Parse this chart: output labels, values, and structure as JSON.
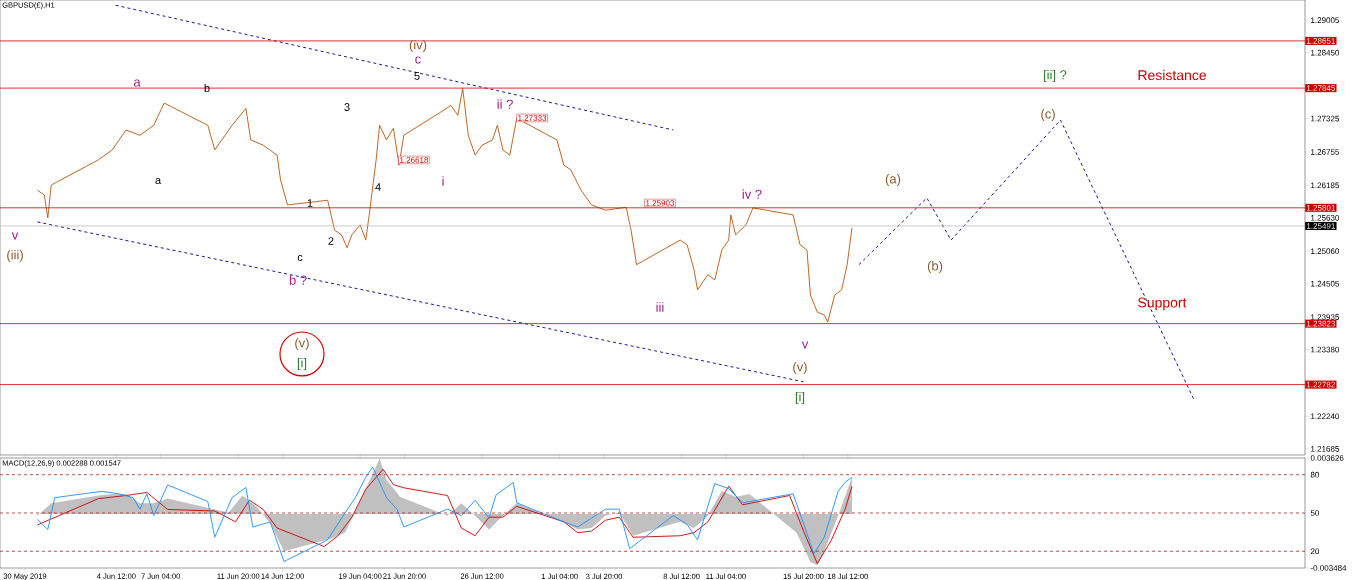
{
  "chart_data": [
    {
      "type": "line",
      "title": "GBPUSD(£),H1",
      "xlim": [
        "2019-05-28T12:00",
        "2019-08-15T00:00"
      ],
      "ylim": [
        1.2158,
        1.2935
      ],
      "tick_labels": "y",
      "yticks": [
        1.29005,
        {
          "value": 1.2845,
          "label": "1.28450"
        },
        1.27325,
        1.26755,
        1.26185,
        {
          "value": 1.2563,
          "label": "1.25630"
        },
        {
          "value": 1.2506,
          "label": "1.25060"
        },
        1.24505,
        1.23935,
        {
          "value": 1.2338,
          "label": "1.23380"
        },
        {
          "value": 1.2224,
          "label": "1.22240"
        },
        1.21685
      ],
      "series": [
        {
          "color": "#b8560f",
          "line_style": "solid",
          "x": [
            "2019-05-30T18:00",
            "2019-05-31T04:00",
            "2019-05-31T09:00",
            "2019-05-31T14:00",
            "2019-06-03T10:00",
            "2019-06-04T06:00",
            "2019-06-05T02:00",
            "2019-06-05T22:00",
            "2019-06-06T18:00",
            "2019-06-07T09:00",
            "2019-06-10T00:00",
            "2019-06-10T10:00",
            "2019-06-11T01:00",
            "2019-06-11T11:00",
            "2019-06-12T07:00",
            "2019-06-12T14:00",
            "2019-06-13T08:00",
            "2019-06-14T04:00",
            "2019-06-14T09:00",
            "2019-06-14T19:00",
            "2019-06-17T05:00",
            "2019-06-17T15:00",
            "2019-06-18T01:00",
            "2019-06-18T09:00",
            "2019-06-18T16:00",
            "2019-06-19T04:00",
            "2019-06-19T12:00",
            "2019-06-19T17:00",
            "2019-06-20T03:00",
            "2019-06-20T08:00",
            "2019-06-20T18:00",
            "2019-06-21T04:00",
            "2019-06-21T12:00",
            "2019-06-21T19:00",
            "2019-06-24T05:00",
            "2019-06-24T15:00",
            "2019-06-25T01:00",
            "2019-06-25T08:00",
            "2019-06-25T16:00",
            "2019-06-26T02:00",
            "2019-06-26T12:00",
            "2019-06-27T03:00",
            "2019-06-27T10:00",
            "2019-06-27T18:00",
            "2019-06-28T04:00",
            "2019-06-28T14:00",
            "2019-07-01T00:00",
            "2019-07-01T10:00",
            "2019-07-01T20:00",
            "2019-07-02T11:00",
            "2019-07-03T02:00",
            "2019-07-03T22:00",
            "2019-07-05T04:00",
            "2019-07-05T11:00",
            "2019-07-05T19:00",
            "2019-07-08T10:00",
            "2019-07-08T20:00",
            "2019-07-09T06:00",
            "2019-07-09T11:00",
            "2019-07-10T02:00",
            "2019-07-10T12:00",
            "2019-07-10T22:00",
            "2019-07-11T08:00",
            "2019-07-11T11:00",
            "2019-07-11T18:00",
            "2019-07-12T09:00",
            "2019-07-12T19:00",
            "2019-07-15T05:00",
            "2019-07-15T15:00",
            "2019-07-16T01:00",
            "2019-07-16T06:00",
            "2019-07-16T16:00",
            "2019-07-17T02:00",
            "2019-07-17T07:00",
            "2019-07-17T17:00",
            "2019-07-18T03:00",
            "2019-07-18T11:00",
            "2019-07-18T18:00"
          ],
          "values": [
            1.261,
            1.2602,
            1.2563,
            1.2619,
            1.2662,
            1.2679,
            1.2713,
            1.2704,
            1.2721,
            1.2759,
            1.2721,
            1.2679,
            1.2704,
            1.2721,
            1.275,
            1.2696,
            1.2687,
            1.267,
            1.2628,
            1.2585,
            1.2593,
            1.2542,
            1.2534,
            1.2512,
            1.2534,
            1.2551,
            1.2525,
            1.2568,
            1.2662,
            1.2721,
            1.2696,
            1.2716,
            1.2653,
            1.2704,
            1.2747,
            1.2755,
            1.2738,
            1.2784,
            1.2704,
            1.267,
            1.2687,
            1.2696,
            1.2721,
            1.2679,
            1.267,
            1.2733,
            1.2696,
            1.2653,
            1.2645,
            1.261,
            1.2585,
            1.2576,
            1.2581,
            1.2542,
            1.2483,
            1.2525,
            1.2517,
            1.2474,
            1.244,
            1.2466,
            1.2457,
            1.2508,
            1.2525,
            1.2568,
            1.2534,
            1.2551,
            1.258,
            1.2568,
            1.2517,
            1.2508,
            1.2431,
            1.2402,
            1.2397,
            1.2385,
            1.2431,
            1.244,
            1.2483,
            1.2546
          ]
        },
        {
          "color": "#00008b",
          "line_style": "dashed",
          "x": [
            "2019-07-19T04:00",
            "2019-07-23T06:00",
            "2019-07-24T17:00",
            "2019-07-31T07:00",
            "2019-08-08T08:00"
          ],
          "values": [
            1.2483,
            1.2597,
            1.2525,
            1.273,
            1.2252
          ]
        },
        {
          "color": "#00008b",
          "line_style": "dashed",
          "x": [
            "2019-06-04T11:00",
            "2019-07-08T00:00"
          ],
          "values": [
            1.2926,
            1.2713
          ]
        },
        {
          "color": "#00008b",
          "line_style": "dashed",
          "x": [
            "2019-05-30T18:00",
            "2019-07-15T20:00"
          ],
          "values": [
            1.2556,
            1.2283
          ]
        }
      ],
      "ref_lines": [
        {
          "axis": "y",
          "value": 1.28651,
          "label": "1.28651",
          "color": "#cc0000"
        },
        {
          "axis": "y",
          "value": 1.27845,
          "label": "1.27845",
          "color": "#cc0000"
        },
        {
          "axis": "y",
          "value": 1.25801,
          "label": "1.25801",
          "color": "#cc0000"
        },
        {
          "axis": "y",
          "value": 1.25491,
          "label": "1.25491",
          "color": "#c0c0c0"
        },
        {
          "axis": "y",
          "value": 1.23823,
          "label": "1.23823",
          "color": "#cc0000"
        },
        {
          "axis": "y",
          "value": 1.22782,
          "label": "1.22782",
          "color": "#cc0000"
        }
      ],
      "annotations": [
        "v",
        "(iii)",
        "a",
        "b",
        "a",
        "c",
        "b ?",
        "1",
        "2",
        "3",
        "4",
        "5",
        "c",
        "(iv)",
        "ii ?",
        "i",
        "iii",
        "iv ?",
        "v",
        "(v)",
        "[i]",
        "(v)",
        "[i]",
        "(a)",
        "(b)",
        "(c)",
        "[ii] ?",
        "Resistance",
        "Support",
        "1.27333",
        "1.26618",
        "1.25903"
      ]
    },
    {
      "type": "area",
      "title": "MACD(12,26,9) 0.002288 0.001547",
      "xlim": [
        "2019-05-28T12:00",
        "2019-08-15T00:00"
      ],
      "ylim": [
        -0.003484,
        0.003626
      ],
      "yticks": [
        0.003626,
        -0.003484
      ],
      "y2lim": [
        6.9,
        93.1
      ],
      "y2ticks": [
        80,
        50,
        20
      ],
      "xticks": [
        {
          "value": "2019-05-30",
          "label": "30 May 2019"
        },
        {
          "value": "2019-06-04T12:00",
          "label": "4 Jun 12:00"
        },
        {
          "value": "2019-06-07T04:00",
          "label": "7 Jun 04:00"
        },
        {
          "value": "2019-06-11T20:00",
          "label": "11 Jun 20:00"
        },
        {
          "value": "2019-06-14T12:00",
          "label": "14 Jun 12:00"
        },
        {
          "value": "2019-06-19T04:00",
          "label": "19 Jun 04:00"
        },
        {
          "value": "2019-06-21T20:00",
          "label": "21 Jun 20:00"
        },
        {
          "value": "2019-06-26T12:00",
          "label": "26 Jun 12:00"
        },
        {
          "value": "2019-07-01T04:00",
          "label": "1 Jul 04:00"
        },
        {
          "value": "2019-07-03T20:00",
          "label": "3 Jul 20:00"
        },
        {
          "value": "2019-07-08T12:00",
          "label": "8 Jul 12:00"
        },
        {
          "value": "2019-07-11T04:00",
          "label": "11 Jul 04:00"
        },
        {
          "value": "2019-07-15T20:00",
          "label": "15 Jul 20:00"
        },
        {
          "value": "2019-07-18T12:00",
          "label": "18 Jul 12:00"
        }
      ],
      "ref_lines": [
        {
          "axis": "y2",
          "value": 80,
          "color": "#b22222",
          "line_style": "dashed"
        },
        {
          "axis": "y2",
          "value": 50,
          "color": "#b22222",
          "line_style": "dashed"
        },
        {
          "axis": "y2",
          "value": 20,
          "color": "#b22222",
          "line_style": "dashed"
        }
      ],
      "series": [
        {
          "color": "#c0c0c0",
          "x": [
            "2019-05-30T18:00",
            "2019-05-31T14:00",
            "2019-06-03T10:00",
            "2019-06-04T06:00",
            "2019-06-05T02:00",
            "2019-06-05T22:00",
            "2019-06-06T18:00",
            "2019-06-07T14:00",
            "2019-06-10T10:00",
            "2019-06-11T06:00",
            "2019-06-12T02:00",
            "2019-06-12T22:00",
            "2019-06-13T18:00",
            "2019-06-14T14:00",
            "2019-06-17T10:00",
            "2019-06-18T06:00",
            "2019-06-19T02:00",
            "2019-06-19T22:00",
            "2019-06-20T08:00",
            "2019-06-20T18:00",
            "2019-06-21T14:00",
            "2019-06-24T10:00",
            "2019-06-25T06:00",
            "2019-06-26T02:00",
            "2019-06-26T22:00",
            "2019-06-27T18:00",
            "2019-06-28T14:00",
            "2019-07-01T10:00",
            "2019-07-02T06:00",
            "2019-07-03T02:00",
            "2019-07-03T22:00",
            "2019-07-04T18:00",
            "2019-07-05T14:00",
            "2019-07-08T10:00",
            "2019-07-09T06:00",
            "2019-07-10T02:00",
            "2019-07-10T22:00",
            "2019-07-11T18:00",
            "2019-07-12T14:00",
            "2019-07-15T10:00",
            "2019-07-16T06:00",
            "2019-07-16T16:00",
            "2019-07-17T02:00",
            "2019-07-17T22:00",
            "2019-07-18T18:00"
          ],
          "values": [
            -0.0001,
            0.0007,
            0.0012,
            0.0013,
            0.0013,
            0.0007,
            0.0007,
            0.001,
            0.0003,
            0.0001,
            0.0012,
            0.0005,
            -0.0006,
            -0.0024,
            -0.0016,
            -0.0012,
            0.0007,
            0.0026,
            0.0036,
            0.0022,
            0.0011,
            -0.0001,
            0.0007,
            -0.0001,
            -0.001,
            -0.0001,
            0.0007,
            -0.0005,
            -0.001,
            -0.0009,
            -0.0001,
            0.0001,
            -0.0014,
            -0.0005,
            -0.0009,
            -0.0001,
            0.0015,
            0.0011,
            0.0013,
            -0.0012,
            -0.0031,
            -0.0033,
            -0.0024,
            -0.0001,
            0.0024
          ]
        },
        {
          "type": "line",
          "color": "#cc0000",
          "x": [
            "2019-05-30T18:00",
            "2019-06-03T10:00",
            "2019-06-05T02:00",
            "2019-06-06T08:00",
            "2019-06-07T14:00",
            "2019-06-10T10:00",
            "2019-06-11T16:00",
            "2019-06-12T12:00",
            "2019-06-13T08:00",
            "2019-06-14T04:00",
            "2019-06-17T00:00",
            "2019-06-17T20:00",
            "2019-06-18T16:00",
            "2019-06-19T12:00",
            "2019-06-20T13:00",
            "2019-06-21T04:00",
            "2019-06-21T19:00",
            "2019-06-24T10:00",
            "2019-06-25T06:00",
            "2019-06-26T02:00",
            "2019-06-26T22:00",
            "2019-06-27T18:00",
            "2019-06-28T14:00",
            "2019-07-01T10:00",
            "2019-07-02T06:00",
            "2019-07-03T02:00",
            "2019-07-03T22:00",
            "2019-07-04T18:00",
            "2019-07-05T14:00",
            "2019-07-08T10:00",
            "2019-07-09T06:00",
            "2019-07-10T02:00",
            "2019-07-11T08:00",
            "2019-07-12T04:00",
            "2019-07-15T00:00",
            "2019-07-15T20:00",
            "2019-07-16T16:00",
            "2019-07-17T12:00",
            "2019-07-18T08:00",
            "2019-07-18T18:00"
          ],
          "values": [
            -0.0007,
            0.001,
            0.0012,
            0.0014,
            0.0003,
            0.0002,
            -0.0005,
            0.0009,
            0.0003,
            -0.0009,
            -0.0021,
            -0.0014,
            -0.0002,
            0.0016,
            0.0029,
            0.0019,
            0.0017,
            0.0012,
            -0.0009,
            -0.0014,
            -0.0002,
            -0.0002,
            0.0005,
            -0.0005,
            -0.0012,
            -0.0011,
            -0.0004,
            -0.0002,
            -0.0015,
            -0.0014,
            -0.0012,
            -0.0005,
            0.0018,
            0.0006,
            0.0012,
            -0.0011,
            -0.0032,
            -0.0017,
            0.0003,
            0.0018
          ]
        },
        {
          "type": "line",
          "color": "#1e90ff",
          "axis": "y2",
          "x": [
            "2019-05-30T18:00",
            "2019-05-31T09:00",
            "2019-05-31T19:00",
            "2019-06-03T15:00",
            "2019-06-04T16:00",
            "2019-06-05T12:00",
            "2019-06-05T22:00",
            "2019-06-06T08:00",
            "2019-06-06T18:00",
            "2019-06-07T14:00",
            "2019-06-10T00:00",
            "2019-06-10T10:00",
            "2019-06-11T11:00",
            "2019-06-12T07:00",
            "2019-06-12T17:00",
            "2019-06-13T18:00",
            "2019-06-14T14:00",
            "2019-06-17T05:00",
            "2019-06-18T06:00",
            "2019-06-18T21:00",
            "2019-06-19T12:00",
            "2019-06-19T22:00",
            "2019-06-20T18:00",
            "2019-06-21T09:00",
            "2019-06-21T19:00",
            "2019-06-24T10:00",
            "2019-06-25T06:00",
            "2019-06-26T02:00",
            "2019-06-26T22:00",
            "2019-06-27T08:00",
            "2019-06-28T09:00",
            "2019-06-28T14:00",
            "2019-07-01T10:00",
            "2019-07-02T06:00",
            "2019-07-03T02:00",
            "2019-07-03T22:00",
            "2019-07-04T18:00",
            "2019-07-05T09:00",
            "2019-07-08T00:00",
            "2019-07-08T20:00",
            "2019-07-09T11:00",
            "2019-07-10T12:00",
            "2019-07-11T08:00",
            "2019-07-12T04:00",
            "2019-07-15T05:00",
            "2019-07-16T01:00",
            "2019-07-16T11:00",
            "2019-07-17T02:00",
            "2019-07-17T22:00",
            "2019-07-18T08:00",
            "2019-07-18T18:00"
          ],
          "values": [
            45,
            37,
            62,
            67,
            65,
            62,
            53,
            65,
            48,
            72,
            59,
            31,
            62,
            70,
            39,
            43,
            12,
            29,
            50,
            62,
            78,
            86,
            62,
            53,
            39,
            53,
            48,
            60,
            46,
            64,
            74,
            58,
            43,
            39,
            46,
            53,
            53,
            22,
            48,
            41,
            29,
            73,
            69,
            58,
            65,
            34,
            18,
            31,
            67,
            74,
            78
          ]
        }
      ]
    }
  ]
}
